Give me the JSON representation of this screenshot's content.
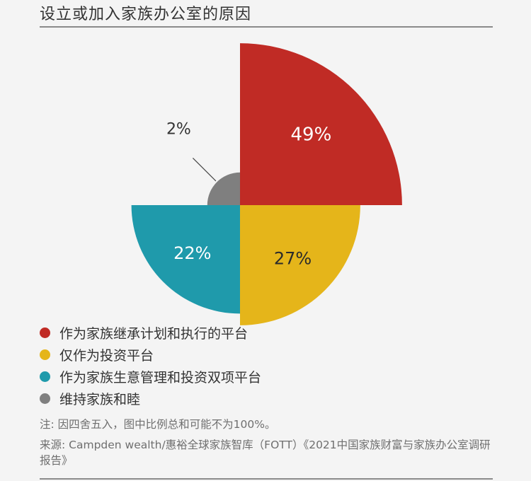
{
  "title": "设立或加入家族办公室的原因",
  "chart_data": {
    "type": "pie",
    "series": [
      {
        "name": "作为家族继承计划和执行的平台",
        "value": 49,
        "label": "49%",
        "color": "#c02b25"
      },
      {
        "name": "仅作为投资平台",
        "value": 27,
        "label": "27%",
        "color": "#e5b51a"
      },
      {
        "name": "作为家族生意管理和投资双项平台",
        "value": 22,
        "label": "22%",
        "color": "#1f9aab"
      },
      {
        "name": "维持家族和睦",
        "value": 2,
        "label": "2%",
        "color": "#7f7f7f"
      }
    ]
  },
  "note": "注: 因四舍五入，图中比例总和可能不为100%。",
  "source": "来源: Campden wealth/惠裕全球家族智库（FOTT）《2021中国家族财富与家族办公室调研报告》"
}
